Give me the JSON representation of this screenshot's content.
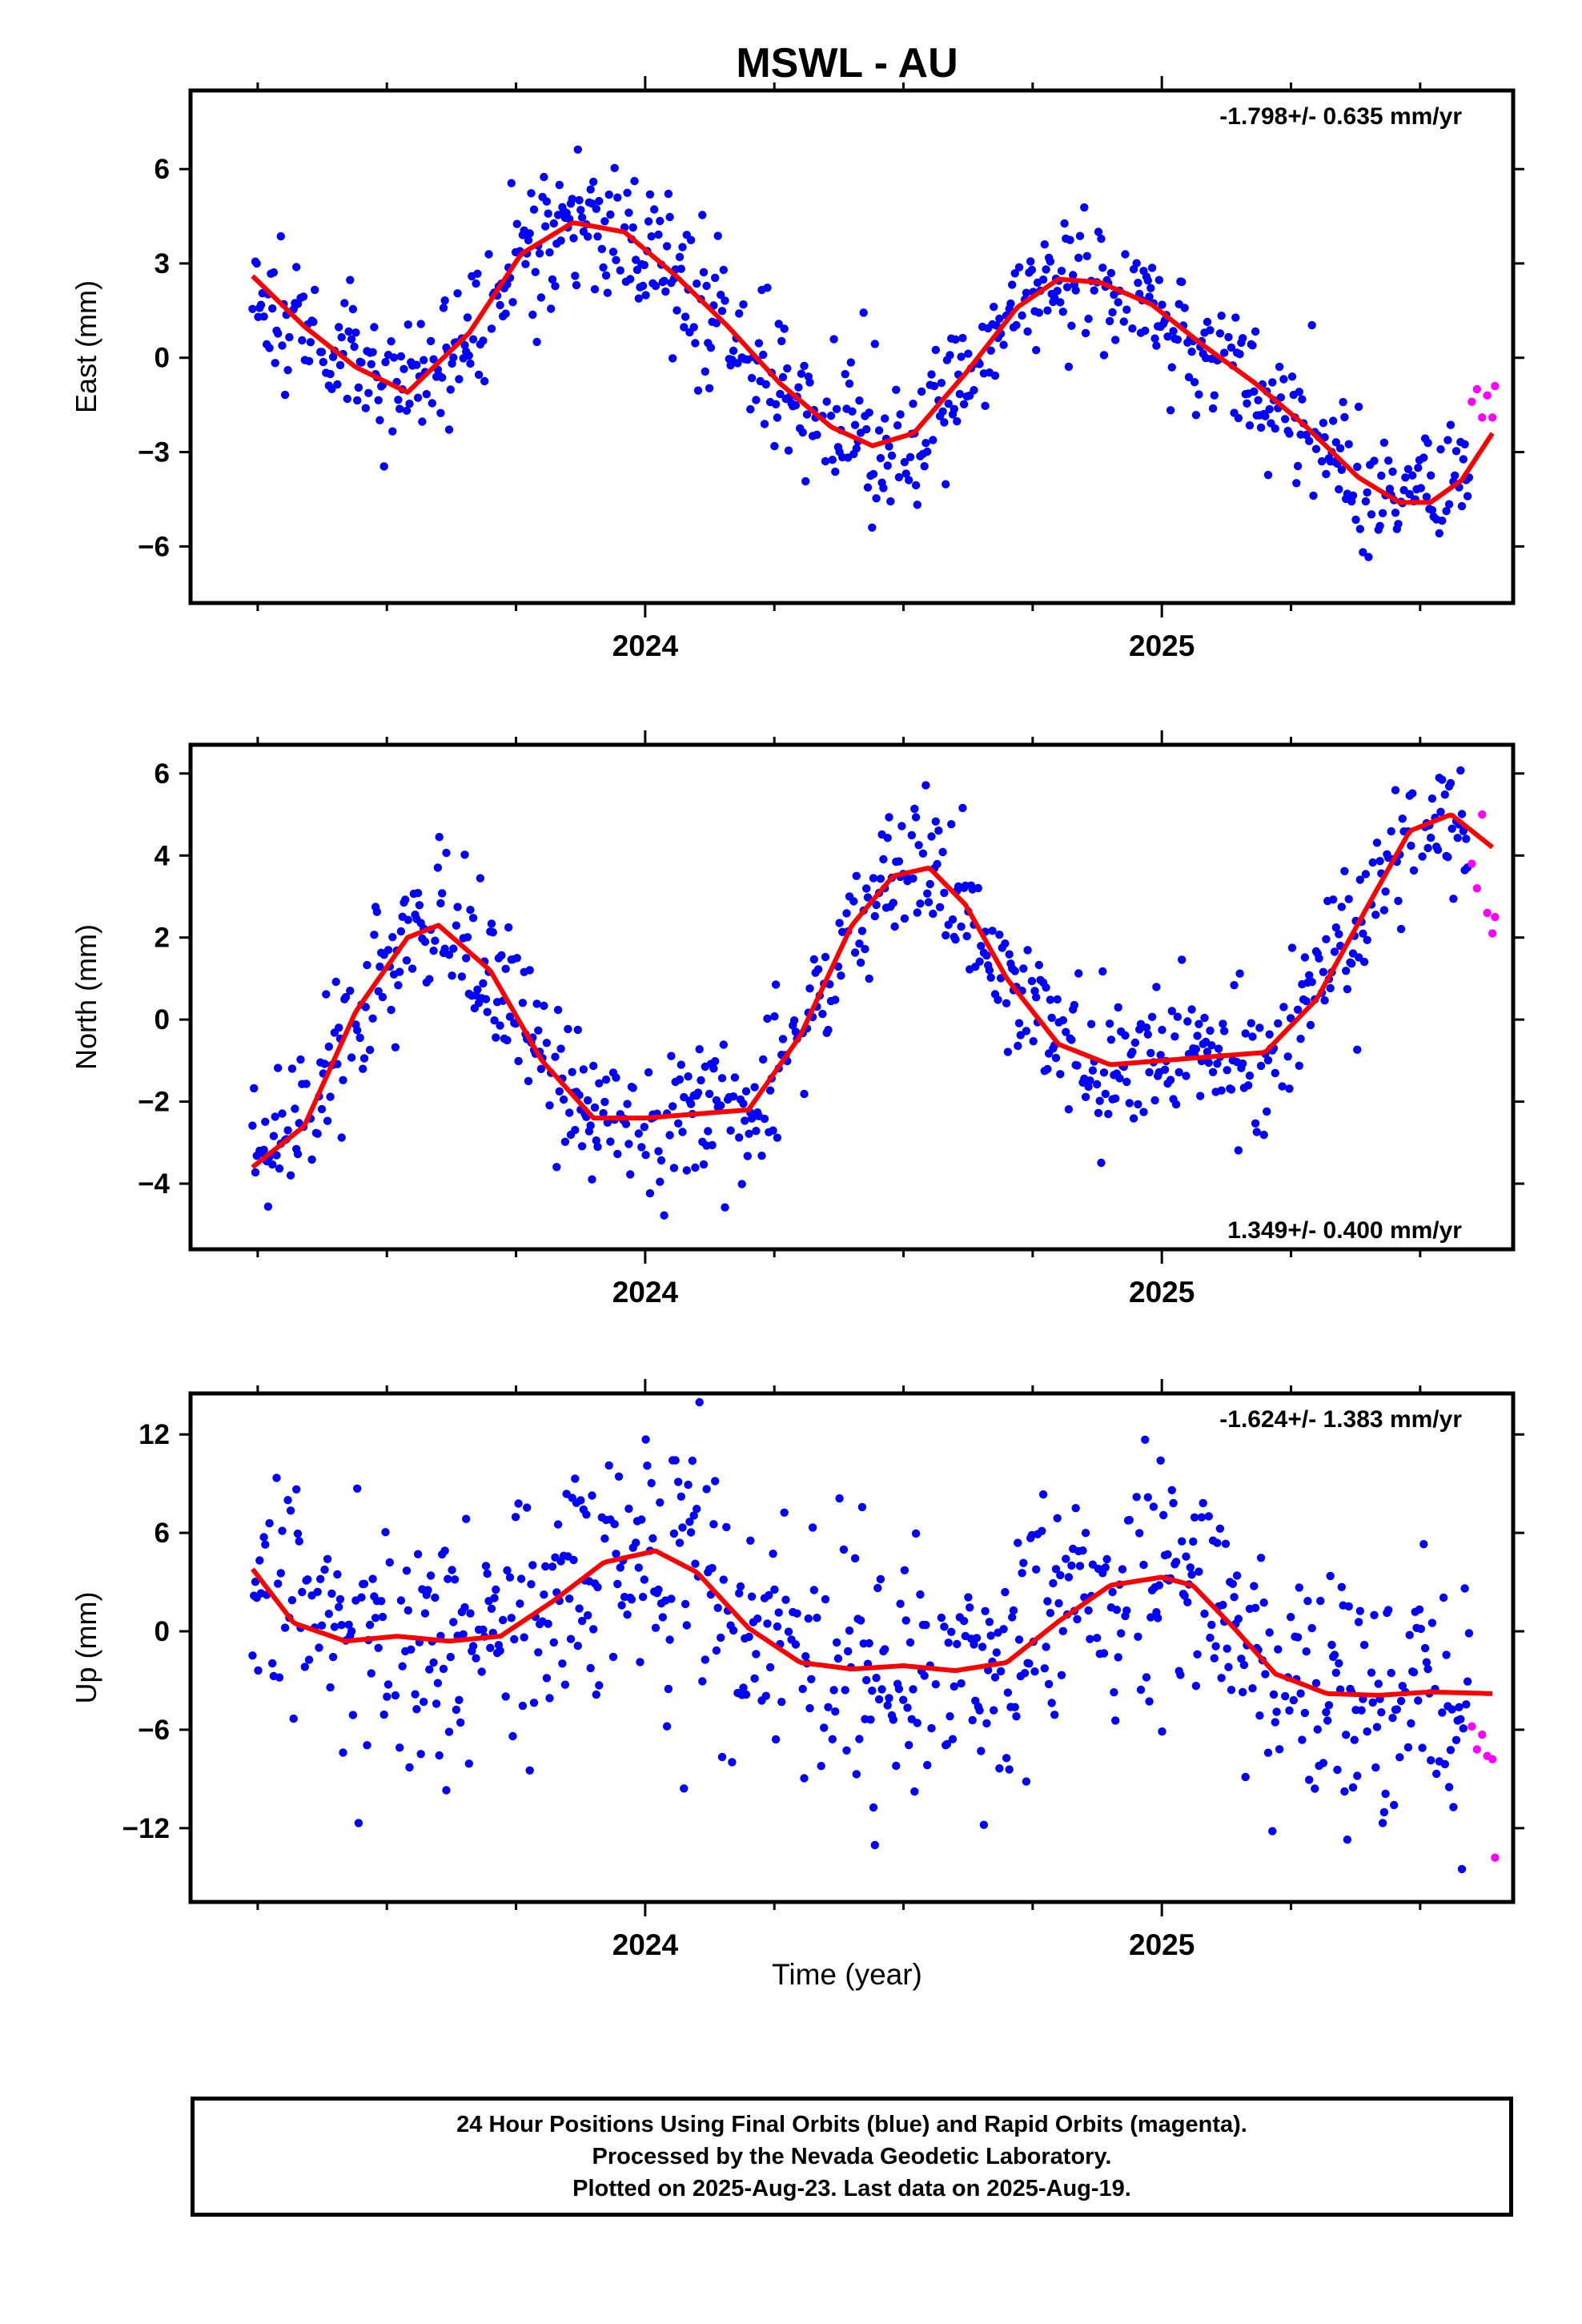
{
  "title": "MSWL - AU",
  "colors": {
    "final": "#0000ff",
    "rapid": "#ff00ff",
    "model": "#ff0000",
    "frame": "#000000"
  },
  "xlabel": "Time (year)",
  "footer": {
    "line1": "24 Hour Positions Using Final Orbits (blue) and Rapid Orbits (magenta).",
    "line2": "Processed by the Nevada Geodetic Laboratory.",
    "line3": "Plotted on 2025-Aug-23. Last data on 2025-Aug-19."
  },
  "chart_data": [
    {
      "type": "scatter",
      "panel": "east",
      "ylabel": "East (mm)",
      "rate": "-1.798+/- 0.635 mm/yr",
      "rate_position": "top-right",
      "xlim": [
        2023.12,
        2025.68
      ],
      "ylim": [
        -7.8,
        8.5
      ],
      "yticks": [
        -6,
        -3,
        0,
        3,
        6
      ],
      "xticks_major": [
        2024,
        2025
      ],
      "xticks_minor": [
        2023.25,
        2023.5,
        2023.75,
        2024.25,
        2024.5,
        2024.75,
        2025.25,
        2025.5
      ],
      "seasonal": {
        "offset": -0.1,
        "trend": -1.8,
        "a1": -1.2,
        "b1": 0.2,
        "a2": 2.5,
        "b2": 1.7,
        "t0": 2024.5
      },
      "scatter_sigma": 1.1,
      "seed": 11,
      "series": [
        {
          "type": "line",
          "color": "#ff0000",
          "x": [
            2023.24,
            2023.34,
            2023.44,
            2023.54,
            2023.66,
            2023.76,
            2023.86,
            2023.96,
            2024.06,
            2024.16,
            2024.26,
            2024.36,
            2024.44,
            2024.52,
            2024.62,
            2024.72,
            2024.8,
            2024.88,
            2024.98,
            2025.08,
            2025.18,
            2025.28,
            2025.38,
            2025.46,
            2025.52,
            2025.58,
            2025.64
          ],
          "y": [
            2.6,
            1.0,
            -0.3,
            -1.1,
            0.8,
            3.3,
            4.3,
            4.0,
            2.6,
            1.0,
            -0.8,
            -2.2,
            -2.8,
            -2.4,
            -0.5,
            1.6,
            2.5,
            2.4,
            1.7,
            0.4,
            -0.8,
            -2.2,
            -3.8,
            -4.6,
            -4.6,
            -3.9,
            -2.4
          ]
        },
        {
          "type": "scatter",
          "color": "#ff00ff",
          "x": [
            2025.6,
            2025.61,
            2025.62,
            2025.63,
            2025.64,
            2025.645
          ],
          "y": [
            -1.4,
            -1.0,
            -1.9,
            -1.2,
            -1.9,
            -0.9
          ]
        }
      ]
    },
    {
      "type": "scatter",
      "panel": "north",
      "ylabel": "North (mm)",
      "rate": "1.349+/- 0.400 mm/yr",
      "rate_position": "bottom-right",
      "xlim": [
        2023.12,
        2025.68
      ],
      "ylim": [
        -5.6,
        6.7
      ],
      "yticks": [
        -4,
        -2,
        0,
        2,
        4,
        6
      ],
      "xticks_major": [
        2024,
        2025
      ],
      "xticks_minor": [
        2023.25,
        2023.5,
        2023.75,
        2024.25,
        2024.5,
        2024.75,
        2025.25,
        2025.5
      ],
      "seasonal": {
        "offset": 0.2,
        "trend": 1.35,
        "a1": 2.7,
        "b1": -0.3,
        "a2": 0.0,
        "b2": 0.5,
        "t0": 2024.5
      },
      "scatter_sigma": 0.85,
      "seed": 22,
      "series": [
        {
          "type": "line",
          "color": "#ff0000",
          "x": [
            2023.24,
            2023.34,
            2023.44,
            2023.54,
            2023.6,
            2023.7,
            2023.8,
            2023.9,
            2024.0,
            2024.1,
            2024.2,
            2024.3,
            2024.4,
            2024.48,
            2024.55,
            2024.62,
            2024.7,
            2024.8,
            2024.9,
            2025.0,
            2025.1,
            2025.2,
            2025.3,
            2025.4,
            2025.48,
            2025.56,
            2025.64
          ],
          "y": [
            -3.6,
            -2.6,
            0.2,
            2.0,
            2.3,
            1.2,
            -1.0,
            -2.4,
            -2.4,
            -2.3,
            -2.2,
            -0.4,
            2.3,
            3.5,
            3.7,
            2.8,
            1.0,
            -0.6,
            -1.1,
            -1.0,
            -0.9,
            -0.8,
            0.5,
            2.8,
            4.6,
            5.0,
            4.2
          ]
        },
        {
          "type": "scatter",
          "color": "#ff00ff",
          "x": [
            2025.6,
            2025.61,
            2025.62,
            2025.63,
            2025.64,
            2025.645
          ],
          "y": [
            3.8,
            3.2,
            5.0,
            2.6,
            2.1,
            2.5
          ]
        }
      ]
    },
    {
      "type": "scatter",
      "panel": "up",
      "ylabel": "Up (mm)",
      "rate": "-1.624+/- 1.383 mm/yr",
      "rate_position": "top-right",
      "xlim": [
        2023.12,
        2025.68
      ],
      "ylim": [
        -16.5,
        14.5
      ],
      "yticks": [
        -12,
        -6,
        0,
        6,
        12
      ],
      "xticks_major": [
        2024,
        2025
      ],
      "xticks_minor": [
        2023.25,
        2023.5,
        2023.75,
        2024.25,
        2024.5,
        2024.75,
        2025.25,
        2025.5
      ],
      "seasonal": {
        "offset": -0.3,
        "trend": -1.6,
        "a1": 0.5,
        "b1": 3.0,
        "a2": 0.0,
        "b2": 0.0,
        "t0": 2024.5
      },
      "scatter_sigma": 3.8,
      "seed": 33,
      "series": [
        {
          "type": "line",
          "color": "#ff0000",
          "x": [
            2023.24,
            2023.32,
            2023.42,
            2023.52,
            2023.62,
            2023.72,
            2023.82,
            2023.92,
            2024.02,
            2024.1,
            2024.2,
            2024.3,
            2024.4,
            2024.5,
            2024.6,
            2024.7,
            2024.8,
            2024.9,
            2025.0,
            2025.06,
            2025.14,
            2025.22,
            2025.32,
            2025.42,
            2025.52,
            2025.64
          ],
          "y": [
            3.8,
            0.5,
            -0.6,
            -0.3,
            -0.6,
            -0.3,
            1.8,
            4.2,
            4.9,
            3.6,
            0.2,
            -1.9,
            -2.3,
            -2.1,
            -2.4,
            -1.9,
            0.6,
            2.8,
            3.3,
            2.8,
            0.2,
            -2.6,
            -3.8,
            -3.9,
            -3.7,
            -3.8
          ]
        },
        {
          "type": "scatter",
          "color": "#ff00ff",
          "x": [
            2025.6,
            2025.61,
            2025.62,
            2025.63,
            2025.64,
            2025.645
          ],
          "y": [
            -5.8,
            -7.2,
            -6.3,
            -7.6,
            -7.8,
            -13.8
          ]
        }
      ]
    }
  ]
}
